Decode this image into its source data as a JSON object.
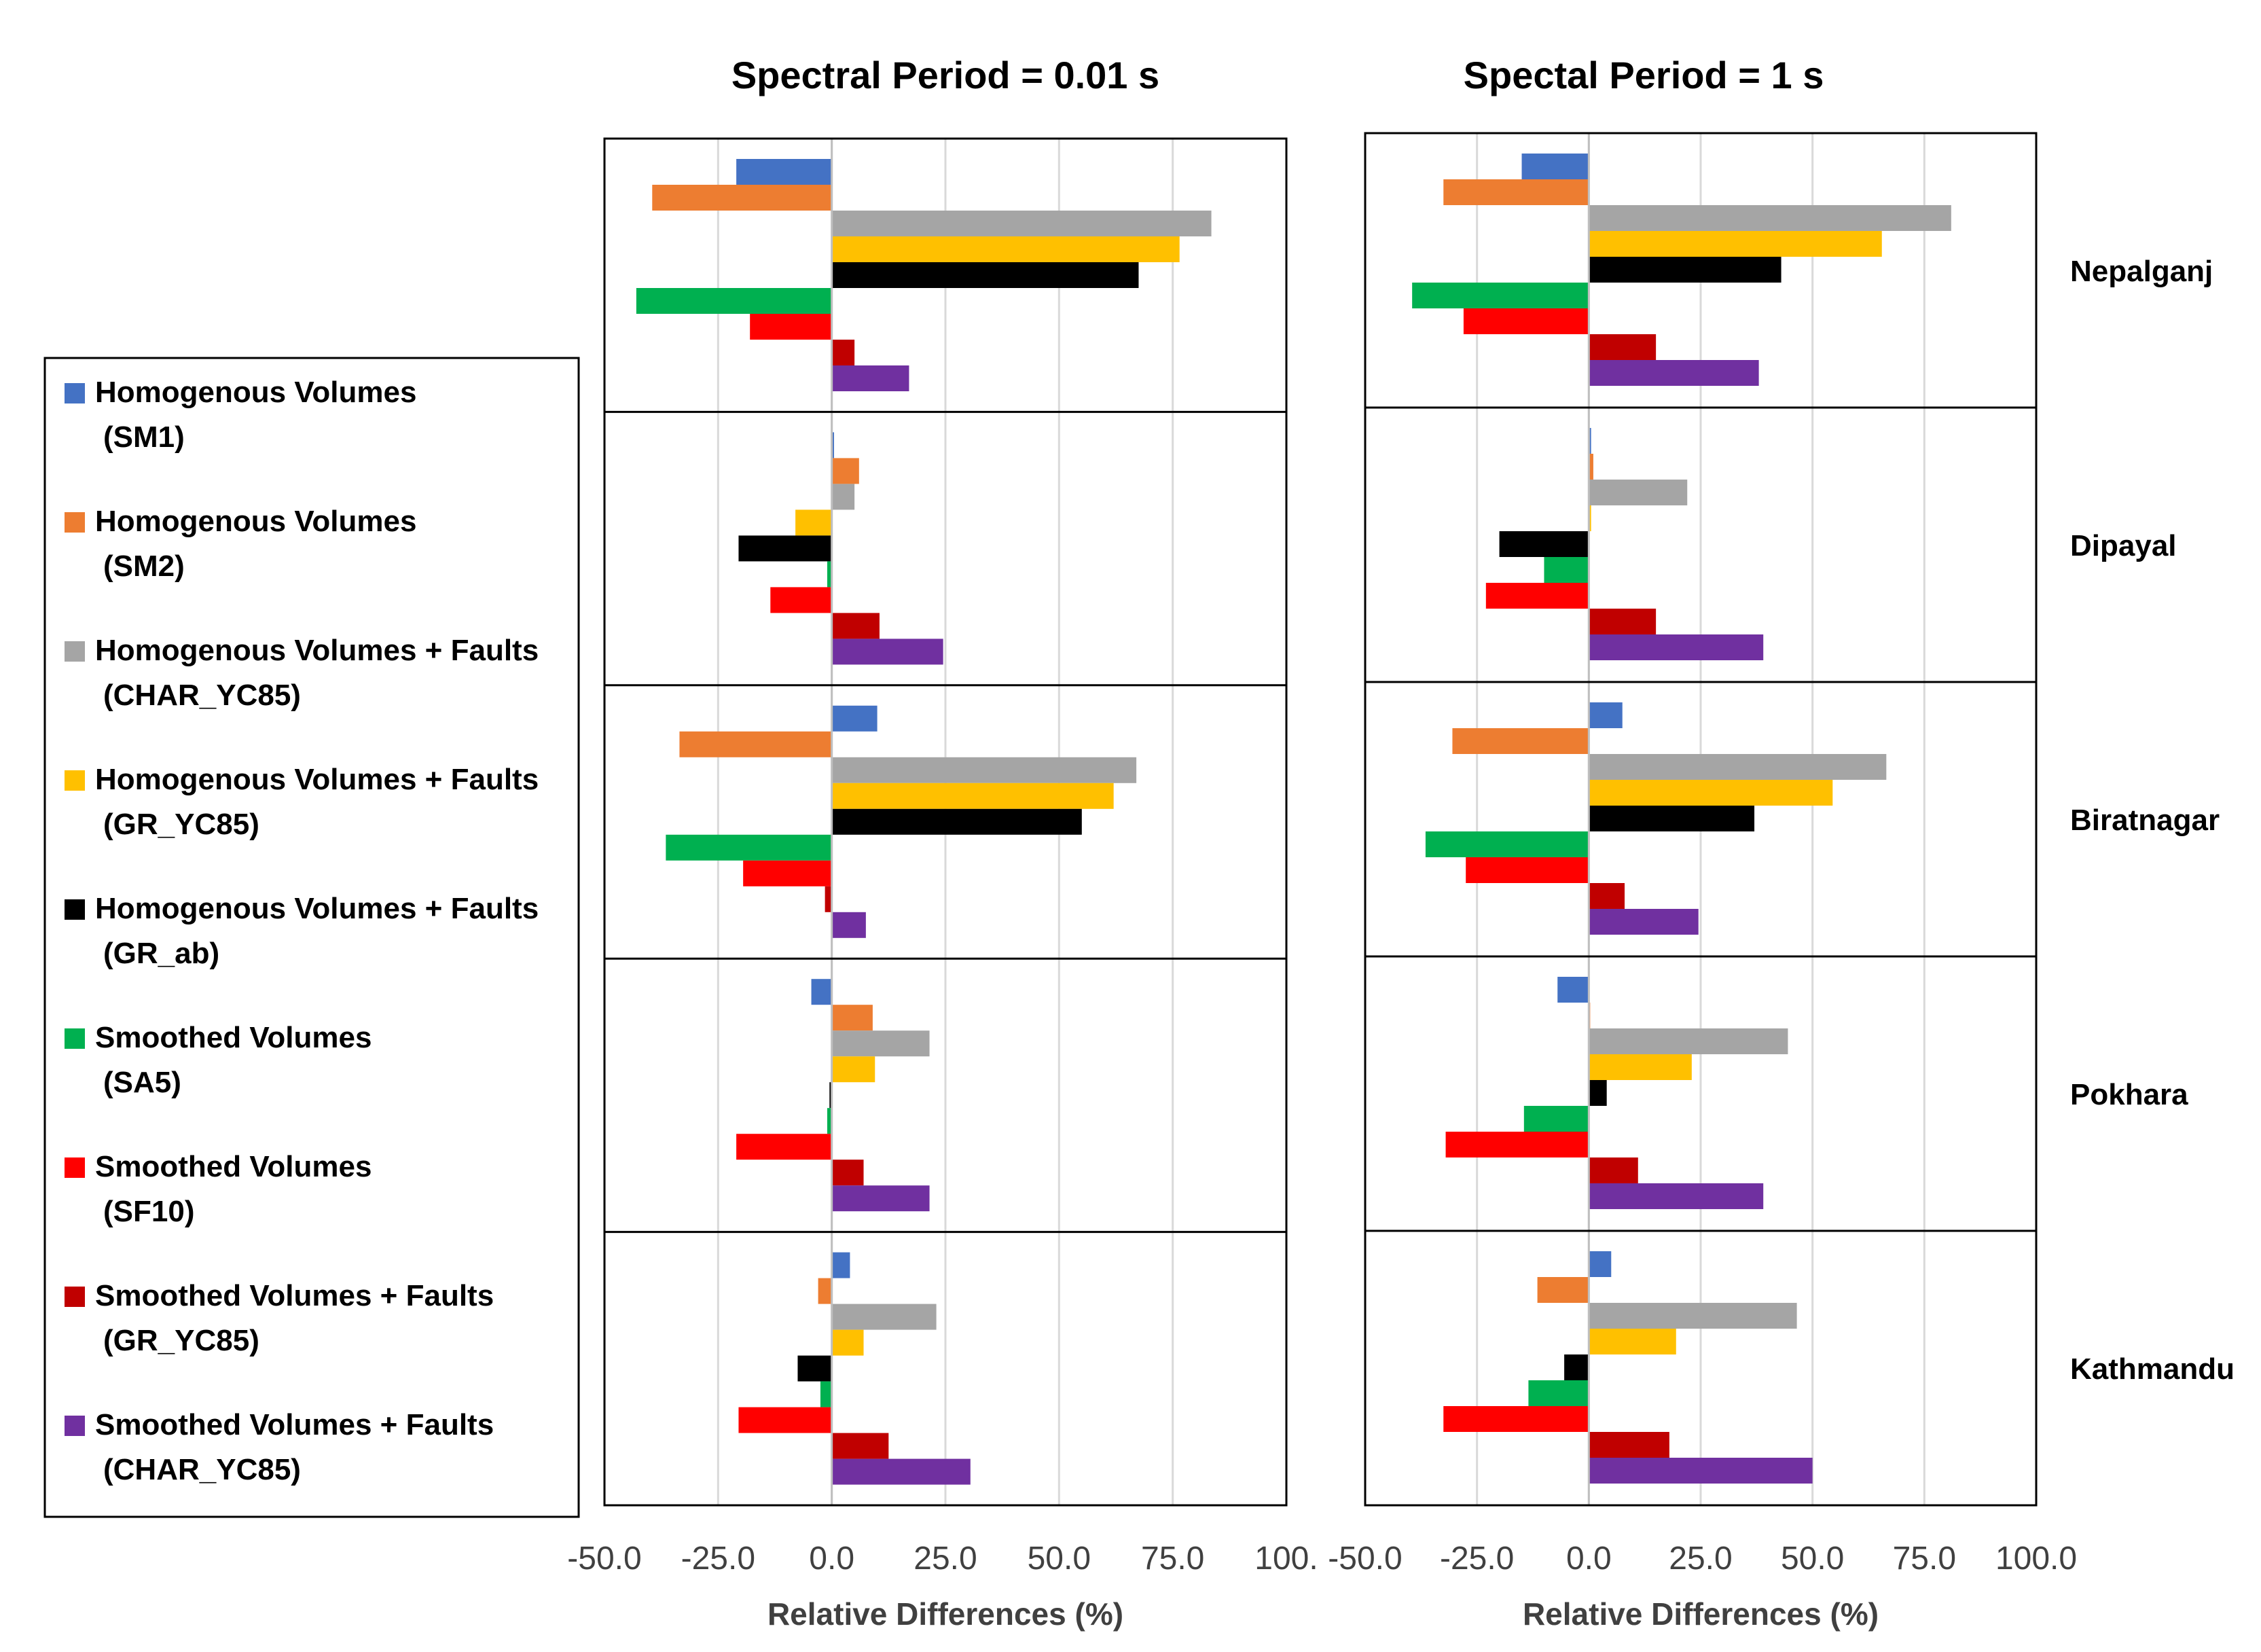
{
  "chart_data": [
    {
      "type": "bar",
      "orientation": "horizontal",
      "title": "Spectral Period = 0.01 s",
      "xlabel": "Relative Differences (%)",
      "xlim": [
        -50,
        100
      ],
      "x_ticks": [
        "-50.0",
        "-25.0",
        "0.0",
        "25.0",
        "50.0",
        "75.0",
        "100."
      ],
      "grid": true,
      "categories": [
        "Nepalganj",
        "Dipayal",
        "Biratnagar",
        "Pokhara",
        "Kathmandu"
      ],
      "series": [
        {
          "name": "Homogenous Volumes (SM1)",
          "values": [
            -21,
            0.5,
            10,
            -4.5,
            4
          ]
        },
        {
          "name": "Homogenous Volumes (SM2)",
          "values": [
            -39.5,
            6,
            -33.5,
            9,
            -3
          ]
        },
        {
          "name": "Homogenous Volumes + Faults (CHAR_YC85)",
          "values": [
            83.5,
            5,
            67,
            21.5,
            23
          ]
        },
        {
          "name": "Homogenous Volumes + Faults (GR_YC85)",
          "values": [
            76.5,
            -8,
            62,
            9.5,
            7
          ]
        },
        {
          "name": "Homogenous Volumes + Faults (GR_ab)",
          "values": [
            67.5,
            -20.5,
            55,
            -0.5,
            -7.5
          ]
        },
        {
          "name": "Smoothed Volumes (SA5)",
          "values": [
            -43,
            -1,
            -36.5,
            -1,
            -2.5
          ]
        },
        {
          "name": "Smoothed Volumes (SF10)",
          "values": [
            -18,
            -13.5,
            -19.5,
            -21,
            -20.5
          ]
        },
        {
          "name": "Smoothed Volumes + Faults (GR_YC85)",
          "values": [
            5,
            10.5,
            -1.5,
            7,
            12.5
          ]
        },
        {
          "name": "Smoothed Volumes + Faults (CHAR_YC85)",
          "values": [
            17,
            24.5,
            7.5,
            21.5,
            30.5
          ]
        }
      ]
    },
    {
      "type": "bar",
      "orientation": "horizontal",
      "title": "Spectal Period = 1 s",
      "xlabel": "Relative Differences (%)",
      "xlim": [
        -50,
        100
      ],
      "x_ticks": [
        "-50.0",
        "-25.0",
        "0.0",
        "25.0",
        "50.0",
        "75.0",
        "100.0"
      ],
      "grid": true,
      "categories": [
        "Nepalganj",
        "Dipayal",
        "Biratnagar",
        "Pokhara",
        "Kathmandu"
      ],
      "series": [
        {
          "name": "Homogenous Volumes (SM1)",
          "values": [
            -15,
            0.5,
            7.5,
            -7,
            5
          ]
        },
        {
          "name": "Homogenous Volumes (SM2)",
          "values": [
            -32.5,
            1,
            -30.5,
            0.3,
            -11.5
          ]
        },
        {
          "name": "Homogenous Volumes + Faults (CHAR_YC85)",
          "values": [
            81,
            22,
            66.5,
            44.5,
            46.5
          ]
        },
        {
          "name": "Homogenous Volumes + Faults (GR_YC85)",
          "values": [
            65.5,
            0.5,
            54.5,
            23,
            19.5
          ]
        },
        {
          "name": "Homogenous Volumes + Faults (GR_ab)",
          "values": [
            43,
            -20,
            37,
            4,
            -5.5
          ]
        },
        {
          "name": "Smoothed Volumes (SA5)",
          "values": [
            -39.5,
            -10,
            -36.5,
            -14.5,
            -13.5
          ]
        },
        {
          "name": "Smoothed Volumes (SF10)",
          "values": [
            -28,
            -23,
            -27.5,
            -32,
            -32.5
          ]
        },
        {
          "name": "Smoothed Volumes + Faults (GR_YC85)",
          "values": [
            15,
            15,
            8,
            11,
            18
          ]
        },
        {
          "name": "Smoothed Volumes + Faults (CHAR_YC85)",
          "values": [
            38,
            39,
            24.5,
            39,
            50
          ]
        }
      ]
    }
  ],
  "legend": {
    "placement": "left",
    "items": [
      {
        "line1": "Homogenous Volumes",
        "line2": "(SM1)",
        "color": "#4472C4"
      },
      {
        "line1": "Homogenous Volumes",
        "line2": "(SM2)",
        "color": "#ED7D31"
      },
      {
        "line1": "Homogenous Volumes + Faults",
        "line2": "(CHAR_YC85)",
        "color": "#A5A5A5"
      },
      {
        "line1": "Homogenous Volumes + Faults",
        "line2": "(GR_YC85)",
        "color": "#FFC000"
      },
      {
        "line1": "Homogenous Volumes + Faults",
        "line2": "(GR_ab)",
        "color": "#000000"
      },
      {
        "line1": "Smoothed Volumes",
        "line2": "(SA5)",
        "color": "#00B050"
      },
      {
        "line1": "Smoothed Volumes",
        "line2": "(SF10)",
        "color": "#FF0000"
      },
      {
        "line1": "Smoothed Volumes + Faults",
        "line2": "(GR_YC85)",
        "color": "#C00000"
      },
      {
        "line1": "Smoothed Volumes + Faults",
        "line2": "(CHAR_YC85)",
        "color": "#7030A0"
      }
    ]
  }
}
